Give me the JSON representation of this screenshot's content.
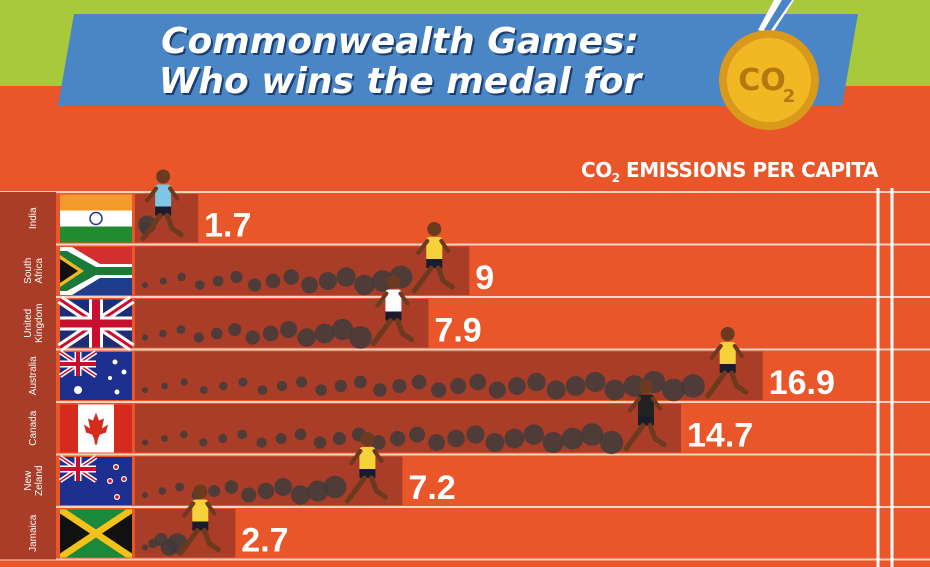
{
  "title_line1": "Commonwealth Games:",
  "title_line2": "Who wins the medal for",
  "medal": {
    "text": "CO",
    "sub": "2",
    "color": "#f2b824"
  },
  "heading": {
    "prefix": "CO",
    "sub": "2",
    "suffix": " EMISSIONS PER CAPITA"
  },
  "colors": {
    "track": "#e8562a",
    "lane_dark": "#a93d27",
    "line": "#f3d3c3",
    "smoke": "#3f3b3b",
    "banner": "#4a86c6",
    "top_band": "#a7c93b"
  },
  "chart_data": {
    "type": "bar",
    "title": "",
    "categories": [
      "India",
      "South Africa",
      "United Kingdom",
      "Australia",
      "Canada",
      "New Zealand",
      "Jamaica"
    ],
    "category_labels": [
      [
        "India"
      ],
      [
        "South",
        "Africa"
      ],
      [
        "United",
        "Kingdom"
      ],
      [
        "Australia"
      ],
      [
        "Canada"
      ],
      [
        "New",
        "Zeland"
      ],
      [
        "Jamaica"
      ]
    ],
    "values": [
      1.7,
      9,
      7.9,
      16.9,
      14.7,
      7.2,
      2.7
    ],
    "data_labels": [
      "1.7",
      "9",
      "7.9",
      "16.9",
      "14.7",
      "7.2",
      "2.7"
    ],
    "flags": [
      "india-flag",
      "south-africa-flag",
      "uk-flag",
      "australia-flag",
      "canada-flag",
      "new-zealand-flag",
      "jamaica-flag"
    ],
    "runner_colors": [
      "#7ec6e6",
      "#f6d23a",
      "#ffffff",
      "#f6d23a",
      "#222222",
      "#f6d23a",
      "#f6d23a"
    ],
    "xlabel": "",
    "ylabel": "",
    "xlim": [
      0,
      17.5
    ],
    "grid": false,
    "orientation": "horizontal"
  }
}
